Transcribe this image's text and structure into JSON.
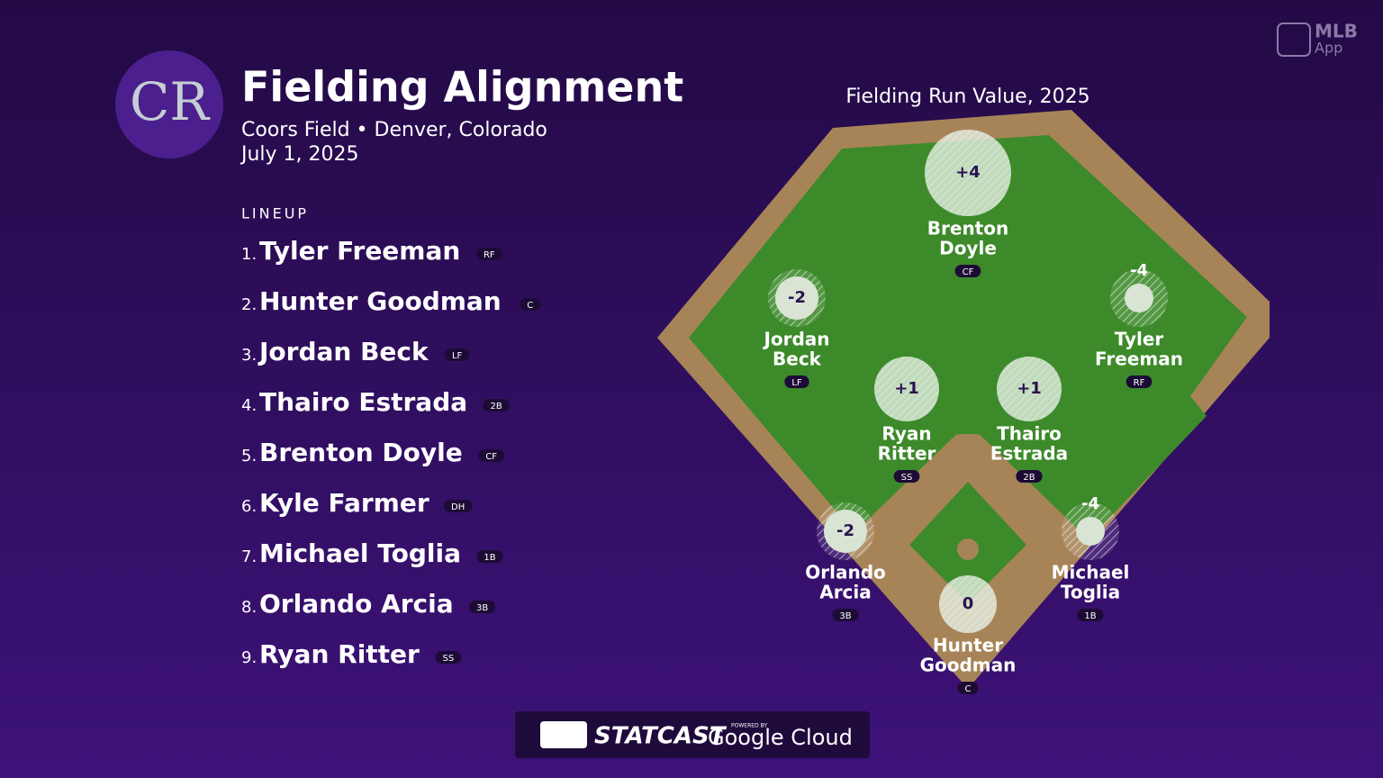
{
  "brand": {
    "mlb": "MLB",
    "app": "App",
    "powered_by": "POWERED BY",
    "statcast": "STATCAST",
    "cloud": "Google Cloud"
  },
  "header": {
    "logo_text": "CR",
    "title": "Fielding Alignment",
    "venue": "Coors Field • Denver, Colorado",
    "date": "July 1, 2025"
  },
  "lineup": {
    "label": "LINEUP",
    "rows": [
      {
        "order": "1.",
        "name": "Tyler Freeman",
        "position": "RF"
      },
      {
        "order": "2.",
        "name": "Hunter Goodman",
        "position": "C"
      },
      {
        "order": "3.",
        "name": "Jordan Beck",
        "position": "LF"
      },
      {
        "order": "4.",
        "name": "Thairo Estrada",
        "position": "2B"
      },
      {
        "order": "5.",
        "name": "Brenton Doyle",
        "position": "CF"
      },
      {
        "order": "6.",
        "name": "Kyle Farmer",
        "position": "DH"
      },
      {
        "order": "7.",
        "name": "Michael Toglia",
        "position": "1B"
      },
      {
        "order": "8.",
        "name": "Orlando Arcia",
        "position": "3B"
      },
      {
        "order": "9.",
        "name": "Ryan Ritter",
        "position": "SS"
      }
    ]
  },
  "field": {
    "title": "Fielding Run Value, 2025",
    "players": [
      {
        "first": "Brenton",
        "last": "Doyle",
        "position": "CF",
        "value": 4,
        "value_label": "+4"
      },
      {
        "first": "Jordan",
        "last": "Beck",
        "position": "LF",
        "value": -2,
        "value_label": "-2"
      },
      {
        "first": "Tyler",
        "last": "Freeman",
        "position": "RF",
        "value": -4,
        "value_label": "-4"
      },
      {
        "first": "Ryan",
        "last": "Ritter",
        "position": "SS",
        "value": 1,
        "value_label": "+1"
      },
      {
        "first": "Thairo",
        "last": "Estrada",
        "position": "2B",
        "value": 1,
        "value_label": "+1"
      },
      {
        "first": "Orlando",
        "last": "Arcia",
        "position": "3B",
        "value": -2,
        "value_label": "-2"
      },
      {
        "first": "Michael",
        "last": "Toglia",
        "position": "1B",
        "value": -4,
        "value_label": "-4"
      },
      {
        "first": "Hunter",
        "last": "Goodman",
        "position": "C",
        "value": 0,
        "value_label": "0"
      }
    ]
  }
}
